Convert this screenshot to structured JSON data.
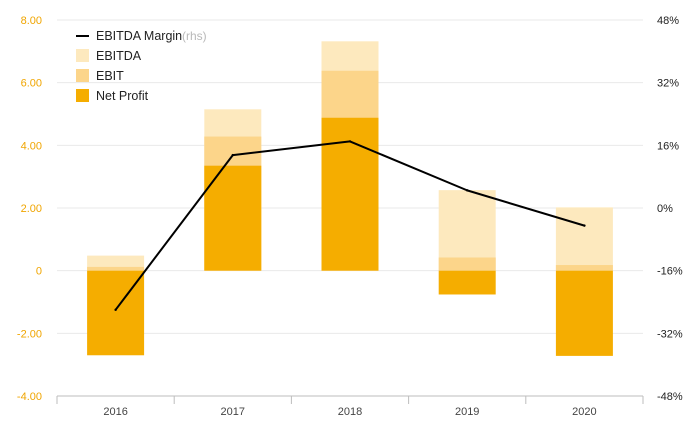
{
  "chart_data": {
    "type": "bar",
    "categories": [
      "2016",
      "2017",
      "2018",
      "2019",
      "2020"
    ],
    "y_left": {
      "ticks": [
        "8.00",
        "6.00",
        "4.00",
        "2.00",
        "0",
        "-2.00",
        "-4.00"
      ],
      "range": [
        -4,
        8
      ]
    },
    "y_right": {
      "ticks": [
        "48%",
        "32%",
        "16%",
        "0%",
        "-16%",
        "-32%",
        "-48%"
      ],
      "range": [
        -48,
        48
      ]
    },
    "series": [
      {
        "name": "EBITDA",
        "color": "#fde9be",
        "values": [
          0.48,
          5.15,
          7.32,
          2.57,
          2.02
        ]
      },
      {
        "name": "EBIT",
        "color": "#fcd58a",
        "values": [
          0.12,
          4.28,
          6.38,
          0.42,
          0.18
        ]
      },
      {
        "name": "Net Profit",
        "color": "#f5ad00",
        "values": [
          -2.7,
          3.35,
          4.88,
          -0.76,
          -2.72
        ]
      }
    ],
    "line": {
      "name": "EBITDA Margin",
      "suffix": "(rhs)",
      "color": "#000000",
      "values": [
        -26,
        13.5,
        17,
        4.5,
        -4.5
      ]
    },
    "grid": true,
    "legend_position": "top-left"
  }
}
